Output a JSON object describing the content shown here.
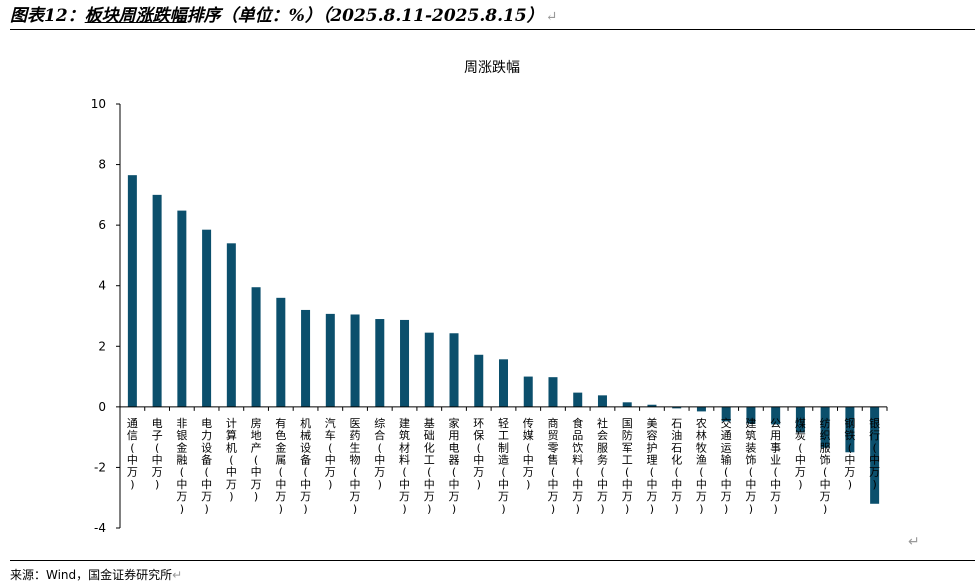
{
  "header": {
    "prefix": "图表12：",
    "title_main": "板块周涨跌幅",
    "title_rest": "排序（单位：%）（2025.8.11-2025.8.15）",
    "return_mark": "↵"
  },
  "footer": {
    "source": "来源：Wind，国金证券研究所",
    "return_mark": "↵"
  },
  "colors": {
    "bar": "#0b4f6c"
  },
  "chart_data": {
    "type": "bar",
    "title": "周涨跌幅",
    "xlabel": "",
    "ylabel": "",
    "ylim": [
      -4,
      10
    ],
    "yticks": [
      10,
      8,
      6,
      4,
      2,
      0,
      -2,
      -4
    ],
    "grid": false,
    "categories": [
      "通信(中万)",
      "电子(中万)",
      "非银金融(中万)",
      "电力设备(中万)",
      "计算机(中万)",
      "房地产(中万)",
      "有色金属(中万)",
      "机械设备(中万)",
      "汽车(中万)",
      "医药生物(中万)",
      "综合(中万)",
      "建筑材料(中万)",
      "基础化工(中万)",
      "家用电器(中万)",
      "环保(中万)",
      "轻工制造(中万)",
      "传媒(中万)",
      "商贸零售(中万)",
      "食品饮料(中万)",
      "社会服务(中万)",
      "国防军工(中万)",
      "美容护理(中万)",
      "石油石化(中万)",
      "农林牧渔(中万)",
      "交通运输(中万)",
      "建筑装饰(中万)",
      "公用事业(中万)",
      "煤炭(中万)",
      "纺织服饰(中万)",
      "钢铁(中万)",
      "银行(中万)"
    ],
    "values": [
      7.65,
      7.0,
      6.48,
      5.85,
      5.4,
      3.95,
      3.6,
      3.2,
      3.07,
      3.05,
      2.9,
      2.87,
      2.45,
      2.43,
      1.72,
      1.57,
      1.0,
      0.98,
      0.47,
      0.38,
      0.15,
      0.07,
      -0.05,
      -0.15,
      -0.48,
      -0.55,
      -0.58,
      -0.85,
      -1.35,
      -1.5,
      -3.2
    ]
  }
}
